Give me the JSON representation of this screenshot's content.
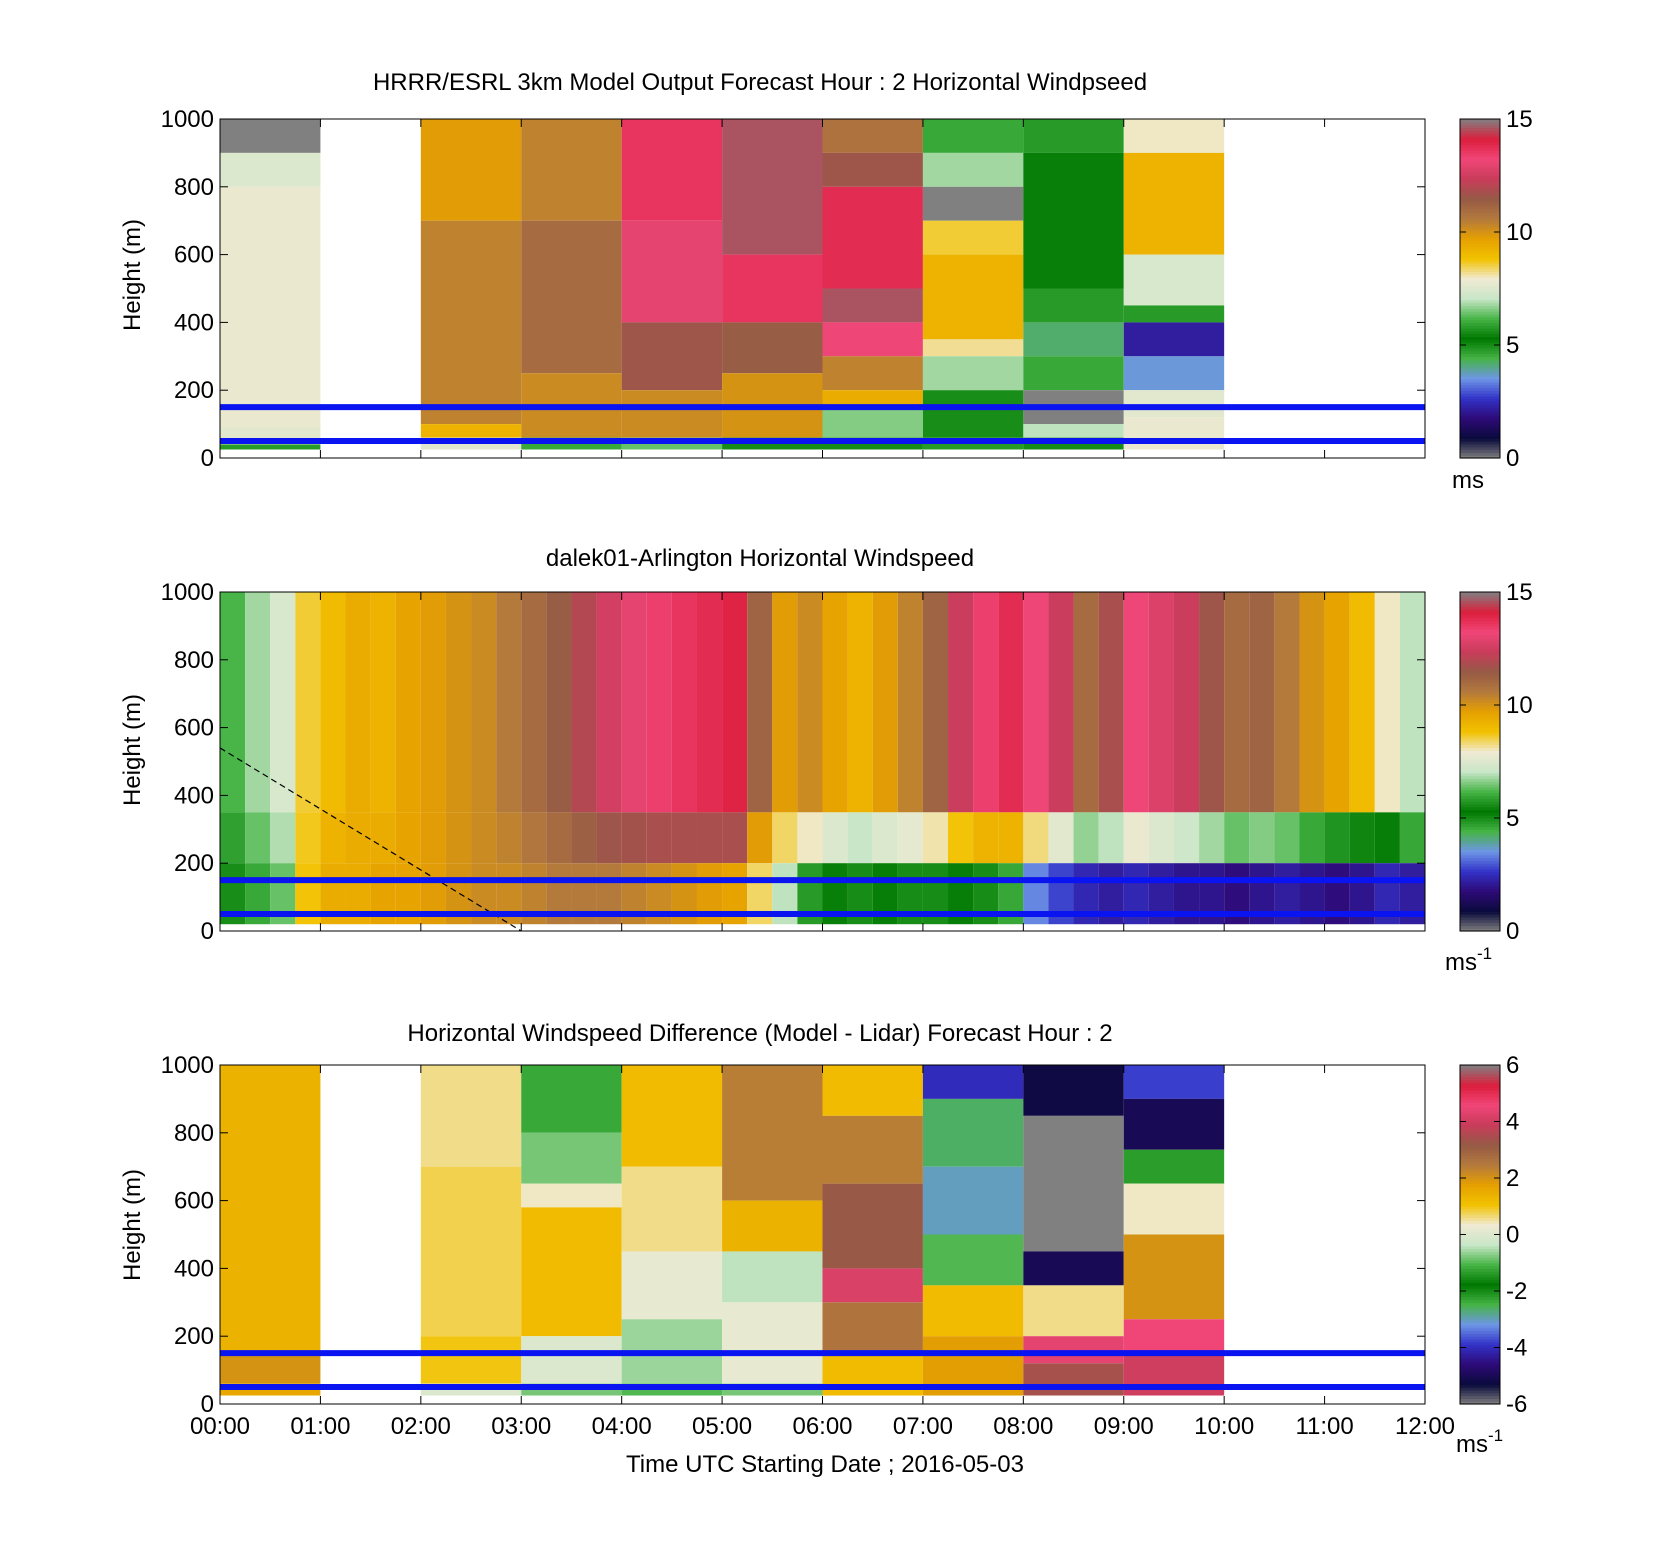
{
  "figure": {
    "xtick_labels": [
      "00:00",
      "01:00",
      "02:00",
      "03:00",
      "04:00",
      "05:00",
      "06:00",
      "07:00",
      "08:00",
      "09:00",
      "10:00",
      "11:00",
      "12:00"
    ],
    "xlabel": "Time UTC  Starting Date ; 2016-05-03"
  },
  "colormaps": {
    "speed": [
      "#808080",
      "#0a0a3c",
      "#2e0a78",
      "#3232c8",
      "#6e96e6",
      "#46b446",
      "#007800",
      "#46b446",
      "#c8e6c8",
      "#f0ead2",
      "#f2c200",
      "#e6a000",
      "#b47a3c",
      "#965a46",
      "#c83c5a",
      "#f04678",
      "#dc1e3c",
      "#808080"
    ],
    "diff": [
      "#808080",
      "#0a0a3c",
      "#2e0a78",
      "#3232c8",
      "#6e96e6",
      "#46b446",
      "#007800",
      "#46b446",
      "#c8e6c8",
      "#f0ead2",
      "#f2c200",
      "#e6a000",
      "#b47a3c",
      "#965a46",
      "#c83c5a",
      "#f04678",
      "#dc1e3c",
      "#808080"
    ]
  },
  "chart_data": [
    {
      "type": "heatmap",
      "title": "HRRR/ESRL 3km Model Output   Forecast Hour : 2 Horizontal Windpseed",
      "ylabel": "Height (m)",
      "xlabel": "",
      "x_range_hours": [
        0,
        12
      ],
      "ylim": [
        0,
        1000
      ],
      "yticks": [
        0,
        200,
        400,
        600,
        800,
        1000
      ],
      "colorbar": {
        "range": [
          0,
          15
        ],
        "ticks": [
          0,
          5,
          10,
          15
        ],
        "unit_label": "ms",
        "colormap": "speed"
      },
      "reference_lines_m": [
        50,
        150
      ],
      "columns": [
        {
          "start": 0,
          "end": 1,
          "bins": [
            {
              "y0": 900,
              "y1": 1000,
              "v": 15.2
            },
            {
              "y0": 800,
              "y1": 900,
              "v": 7.5
            },
            {
              "y0": 90,
              "y1": 800,
              "v": 7.8
            },
            {
              "y0": 40,
              "y1": 90,
              "v": 7.6
            },
            {
              "y0": 25,
              "y1": 40,
              "v": 5.8
            }
          ]
        },
        {
          "start": 2,
          "end": 3,
          "bins": [
            {
              "y0": 700,
              "y1": 1000,
              "v": 9.8
            },
            {
              "y0": 100,
              "y1": 700,
              "v": 10.4
            },
            {
              "y0": 60,
              "y1": 100,
              "v": 9.2
            },
            {
              "y0": 25,
              "y1": 60,
              "v": 7.6
            }
          ]
        },
        {
          "start": 3,
          "end": 4,
          "bins": [
            {
              "y0": 700,
              "y1": 1000,
              "v": 10.4
            },
            {
              "y0": 250,
              "y1": 700,
              "v": 11.0
            },
            {
              "y0": 60,
              "y1": 250,
              "v": 10.2
            },
            {
              "y0": 25,
              "y1": 60,
              "v": 6.0
            }
          ]
        },
        {
          "start": 4,
          "end": 5,
          "bins": [
            {
              "y0": 700,
              "y1": 1000,
              "v": 13.6
            },
            {
              "y0": 400,
              "y1": 700,
              "v": 13.0
            },
            {
              "y0": 200,
              "y1": 400,
              "v": 11.6
            },
            {
              "y0": 60,
              "y1": 200,
              "v": 10.2
            },
            {
              "y0": 25,
              "y1": 60,
              "v": 6.4
            }
          ]
        },
        {
          "start": 5,
          "end": 6,
          "bins": [
            {
              "y0": 600,
              "y1": 1000,
              "v": 14.6
            },
            {
              "y0": 400,
              "y1": 600,
              "v": 13.6
            },
            {
              "y0": 250,
              "y1": 400,
              "v": 11.4
            },
            {
              "y0": 60,
              "y1": 250,
              "v": 10.0
            },
            {
              "y0": 25,
              "y1": 60,
              "v": 5.0
            }
          ]
        },
        {
          "start": 6,
          "end": 7,
          "bins": [
            {
              "y0": 900,
              "y1": 1000,
              "v": 10.8
            },
            {
              "y0": 800,
              "y1": 900,
              "v": 11.6
            },
            {
              "y0": 500,
              "y1": 800,
              "v": 13.8
            },
            {
              "y0": 400,
              "y1": 500,
              "v": 14.6
            },
            {
              "y0": 300,
              "y1": 400,
              "v": 13.2
            },
            {
              "y0": 200,
              "y1": 300,
              "v": 10.4
            },
            {
              "y0": 150,
              "y1": 200,
              "v": 9.4
            },
            {
              "y0": 60,
              "y1": 150,
              "v": 6.6
            },
            {
              "y0": 25,
              "y1": 60,
              "v": 5.0
            }
          ]
        },
        {
          "start": 7,
          "end": 8,
          "bins": [
            {
              "y0": 900,
              "y1": 1000,
              "v": 6.0
            },
            {
              "y0": 800,
              "y1": 900,
              "v": 6.8
            },
            {
              "y0": 700,
              "y1": 800,
              "v": 15.2
            },
            {
              "y0": 600,
              "y1": 700,
              "v": 8.6
            },
            {
              "y0": 350,
              "y1": 600,
              "v": 9.2
            },
            {
              "y0": 300,
              "y1": 350,
              "v": 8.2
            },
            {
              "y0": 200,
              "y1": 300,
              "v": 6.8
            },
            {
              "y0": 60,
              "y1": 200,
              "v": 5.6
            },
            {
              "y0": 25,
              "y1": 60,
              "v": 4.8
            }
          ]
        },
        {
          "start": 8,
          "end": 9,
          "bins": [
            {
              "y0": 900,
              "y1": 1000,
              "v": 4.8
            },
            {
              "y0": 500,
              "y1": 900,
              "v": 5.4
            },
            {
              "y0": 400,
              "y1": 500,
              "v": 4.8
            },
            {
              "y0": 300,
              "y1": 400,
              "v": 4.2
            },
            {
              "y0": 200,
              "y1": 300,
              "v": 6.0
            },
            {
              "y0": 100,
              "y1": 200,
              "v": 15.2
            },
            {
              "y0": 60,
              "y1": 100,
              "v": 7.0
            },
            {
              "y0": 25,
              "y1": 60,
              "v": 5.0
            }
          ]
        },
        {
          "start": 9,
          "end": 10,
          "bins": [
            {
              "y0": 900,
              "y1": 1000,
              "v": 8.0
            },
            {
              "y0": 600,
              "y1": 900,
              "v": 9.2
            },
            {
              "y0": 450,
              "y1": 600,
              "v": 7.4
            },
            {
              "y0": 400,
              "y1": 450,
              "v": 4.8
            },
            {
              "y0": 300,
              "y1": 400,
              "v": 2.2
            },
            {
              "y0": 200,
              "y1": 300,
              "v": 3.6
            },
            {
              "y0": 120,
              "y1": 200,
              "v": 7.6
            },
            {
              "y0": 25,
              "y1": 120,
              "v": 7.8
            }
          ]
        }
      ]
    },
    {
      "type": "heatmap",
      "title": "dalek01-Arlington  Horizontal Windspeed",
      "ylabel": "Height (m)",
      "xlabel": "",
      "x_range_hours": [
        0,
        12
      ],
      "ylim": [
        0,
        1000
      ],
      "yticks": [
        0,
        200,
        400,
        600,
        800,
        1000
      ],
      "colorbar": {
        "range": [
          0,
          15
        ],
        "ticks": [
          0,
          5,
          10,
          15
        ],
        "unit_label": "ms",
        "unit_exponent": "-1",
        "colormap": "speed"
      },
      "reference_lines_m": [
        50,
        150
      ],
      "dashed_line": {
        "x": [
          0,
          3
        ],
        "y": [
          540,
          0
        ]
      },
      "time_step_hours": 0.25,
      "speed_by_quarter_hour": [
        6.2,
        6.8,
        7.4,
        8.6,
        9.0,
        9.4,
        9.2,
        9.6,
        9.8,
        10.0,
        10.2,
        10.6,
        11.0,
        11.4,
        12.0,
        12.6,
        13.0,
        13.4,
        13.6,
        13.8,
        14.0,
        11.2,
        9.8,
        10.2,
        9.6,
        9.2,
        9.8,
        10.4,
        11.2,
        12.4,
        13.4,
        13.8,
        13.2,
        12.4,
        11.0,
        11.8,
        13.2,
        12.8,
        12.4,
        11.6,
        11.0,
        11.2,
        10.6,
        10.0,
        9.6,
        9.0,
        8.0,
        7.0
      ],
      "lower_layer_speed_by_quarter_hour": [
        5.6,
        6.0,
        6.4,
        8.8,
        9.4,
        9.4,
        9.6,
        9.6,
        9.8,
        10.0,
        10.2,
        10.2,
        10.4,
        10.6,
        10.6,
        10.6,
        10.4,
        10.2,
        10.0,
        9.8,
        9.6,
        8.4,
        7.0,
        5.8,
        5.4,
        5.0,
        5.2,
        5.0,
        5.0,
        5.2,
        5.0,
        4.6,
        3.4,
        2.8,
        2.4,
        2.2,
        2.4,
        2.2,
        2.0,
        2.0,
        1.8,
        2.0,
        2.2,
        2.0,
        1.8,
        2.0,
        2.4,
        2.2
      ]
    },
    {
      "type": "heatmap",
      "title": "Horizontal Windspeed Difference (Model - Lidar) Forecast Hour : 2",
      "ylabel": "Height (m)",
      "xlabel": "Time UTC  Starting Date ; 2016-05-03",
      "x_range_hours": [
        0,
        12
      ],
      "ylim": [
        0,
        1000
      ],
      "yticks": [
        0,
        200,
        400,
        600,
        800,
        1000
      ],
      "colorbar": {
        "range": [
          -6,
          6
        ],
        "ticks": [
          -6,
          -4,
          -2,
          0,
          2,
          4,
          6
        ],
        "unit_label": "ms",
        "unit_exponent": "-1",
        "colormap": "diff"
      },
      "reference_lines_m": [
        50,
        150
      ],
      "columns": [
        {
          "start": 0,
          "end": 1,
          "bins": [
            {
              "y0": 150,
              "y1": 1000,
              "v": 1.4
            },
            {
              "y0": 60,
              "y1": 150,
              "v": 2.0
            },
            {
              "y0": 25,
              "y1": 60,
              "v": 1.6
            }
          ]
        },
        {
          "start": 2,
          "end": 3,
          "bins": [
            {
              "y0": 700,
              "y1": 1000,
              "v": 0.6
            },
            {
              "y0": 200,
              "y1": 700,
              "v": 0.8
            },
            {
              "y0": 60,
              "y1": 200,
              "v": 1.0
            },
            {
              "y0": 25,
              "y1": 60,
              "v": 0.0
            }
          ]
        },
        {
          "start": 3,
          "end": 4,
          "bins": [
            {
              "y0": 800,
              "y1": 1000,
              "v": -1.2
            },
            {
              "y0": 650,
              "y1": 800,
              "v": -0.8
            },
            {
              "y0": 580,
              "y1": 650,
              "v": 0.4
            },
            {
              "y0": 200,
              "y1": 580,
              "v": 1.2
            },
            {
              "y0": 60,
              "y1": 200,
              "v": 0.0
            },
            {
              "y0": 25,
              "y1": 60,
              "v": -0.8
            }
          ]
        },
        {
          "start": 4,
          "end": 5,
          "bins": [
            {
              "y0": 700,
              "y1": 1000,
              "v": 1.2
            },
            {
              "y0": 450,
              "y1": 700,
              "v": 0.6
            },
            {
              "y0": 250,
              "y1": 450,
              "v": 0.2
            },
            {
              "y0": 60,
              "y1": 250,
              "v": -0.6
            },
            {
              "y0": 25,
              "y1": 60,
              "v": -1.0
            }
          ]
        },
        {
          "start": 5,
          "end": 6,
          "bins": [
            {
              "y0": 600,
              "y1": 1000,
              "v": 2.4
            },
            {
              "y0": 450,
              "y1": 600,
              "v": 1.4
            },
            {
              "y0": 300,
              "y1": 450,
              "v": -0.4
            },
            {
              "y0": 60,
              "y1": 300,
              "v": 0.2
            },
            {
              "y0": 25,
              "y1": 60,
              "v": -0.8
            }
          ]
        },
        {
          "start": 6,
          "end": 7,
          "bins": [
            {
              "y0": 850,
              "y1": 1000,
              "v": 1.2
            },
            {
              "y0": 650,
              "y1": 850,
              "v": 2.4
            },
            {
              "y0": 400,
              "y1": 650,
              "v": 3.2
            },
            {
              "y0": 300,
              "y1": 400,
              "v": 4.2
            },
            {
              "y0": 150,
              "y1": 300,
              "v": 2.6
            },
            {
              "y0": 25,
              "y1": 150,
              "v": 1.2
            }
          ]
        },
        {
          "start": 7,
          "end": 8,
          "bins": [
            {
              "y0": 900,
              "y1": 1000,
              "v": -4.0
            },
            {
              "y0": 700,
              "y1": 900,
              "v": -2.6
            },
            {
              "y0": 500,
              "y1": 700,
              "v": -3.0
            },
            {
              "y0": 350,
              "y1": 500,
              "v": -1.0
            },
            {
              "y0": 200,
              "y1": 350,
              "v": 1.2
            },
            {
              "y0": 25,
              "y1": 200,
              "v": 1.8
            }
          ]
        },
        {
          "start": 8,
          "end": 9,
          "bins": [
            {
              "y0": 850,
              "y1": 1000,
              "v": -5.2
            },
            {
              "y0": 450,
              "y1": 850,
              "v": 6.2
            },
            {
              "y0": 350,
              "y1": 450,
              "v": -5.0
            },
            {
              "y0": 200,
              "y1": 350,
              "v": 0.6
            },
            {
              "y0": 120,
              "y1": 200,
              "v": 4.4
            },
            {
              "y0": 25,
              "y1": 120,
              "v": 3.4
            }
          ]
        },
        {
          "start": 9,
          "end": 10,
          "bins": [
            {
              "y0": 900,
              "y1": 1000,
              "v": -3.8
            },
            {
              "y0": 750,
              "y1": 900,
              "v": -5.0
            },
            {
              "y0": 650,
              "y1": 750,
              "v": -2.2
            },
            {
              "y0": 500,
              "y1": 650,
              "v": 0.4
            },
            {
              "y0": 250,
              "y1": 500,
              "v": 2.0
            },
            {
              "y0": 150,
              "y1": 250,
              "v": 4.6
            },
            {
              "y0": 25,
              "y1": 150,
              "v": 4.0
            }
          ]
        }
      ]
    }
  ]
}
